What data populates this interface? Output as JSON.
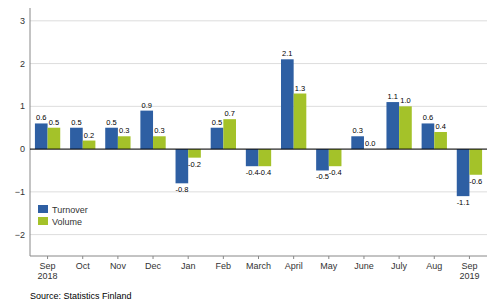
{
  "chart_data": {
    "type": "bar",
    "categories": [
      "Sep\n2018",
      "Oct",
      "Nov",
      "Dec",
      "Jan",
      "Feb",
      "March",
      "April",
      "May",
      "June",
      "July",
      "Aug",
      "Sep\n2019"
    ],
    "series": [
      {
        "name": "Turnover",
        "color": "#2e5fa3",
        "values": [
          0.6,
          0.5,
          0.5,
          0.9,
          -0.8,
          0.5,
          -0.4,
          2.1,
          -0.5,
          0.3,
          1.1,
          0.6,
          -1.1
        ]
      },
      {
        "name": "Volume",
        "color": "#a4c229",
        "values": [
          0.5,
          0.2,
          0.3,
          0.3,
          -0.2,
          0.7,
          -0.4,
          1.3,
          -0.4,
          0.0,
          1.0,
          0.4,
          -0.6
        ],
        "value_labels": [
          "0.5",
          "0.2",
          "0.3",
          "0.3",
          "-0.2",
          "0.7",
          "-0.4",
          "1.3",
          "-0.4",
          "0.0",
          "1.0",
          "0.4",
          "-0.6"
        ]
      }
    ],
    "ylim": [
      -2.5,
      3.3
    ],
    "yticks": [
      {
        "value": -2,
        "label": "−2"
      },
      {
        "value": -1,
        "label": "−1"
      },
      0,
      1,
      2,
      3
    ],
    "grid": true,
    "legend": "lower left",
    "data_labels": true,
    "annotations": [
      "Source: Statistics Finland"
    ]
  }
}
